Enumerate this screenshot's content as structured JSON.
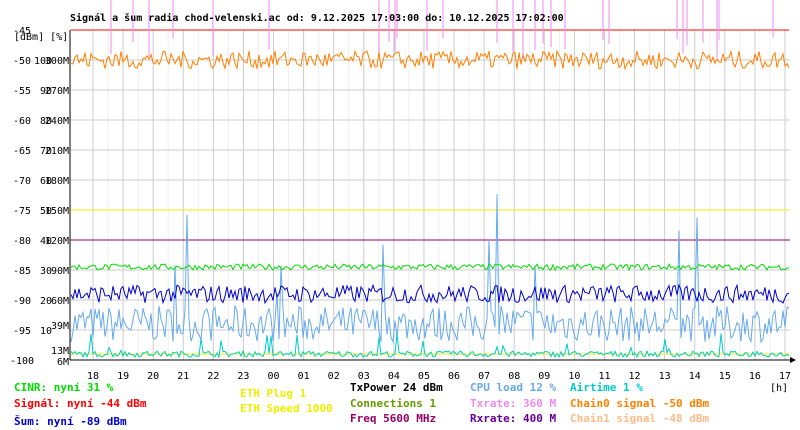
{
  "chart_data": {
    "type": "line",
    "title": "Signál a šum radia chod-velenski.ac od: 9.12.2025 17:03:00 do: 10.12.2025 17:02:00",
    "ylabel_units": "[dBm] [%]",
    "xunit": "[h]",
    "x_ticks": [
      "18",
      "19",
      "20",
      "21",
      "22",
      "23",
      "00",
      "01",
      "02",
      "03",
      "04",
      "05",
      "06",
      "07",
      "08",
      "09",
      "10",
      "11",
      "12",
      "13",
      "14",
      "15",
      "16",
      "17"
    ],
    "y_dbm_ticks": [
      -45,
      -50,
      -55,
      -60,
      -65,
      -70,
      -75,
      -80,
      -85,
      -90,
      -95,
      -100
    ],
    "y_pct_ticks": [
      100,
      90,
      80,
      70,
      60,
      50,
      40,
      30,
      20,
      10
    ],
    "y_rate_ticks": [
      "300M",
      "270M",
      "240M",
      "210M",
      "180M",
      "150M",
      "120M",
      "90M",
      "60M"
    ],
    "y_rate_labels_low": [
      "39M",
      "13M",
      "6M"
    ],
    "ylim_dbm": [
      -100,
      -45
    ],
    "reference_lines": [
      {
        "name": "Rxrate",
        "unit": "M",
        "value": 120,
        "color": "#990066"
      },
      {
        "name": "ETH Speed",
        "unit": "M",
        "value": 150,
        "color": "#eeee00"
      },
      {
        "name": "ETH Speed low",
        "unit": "%",
        "value": 2,
        "color": "#eeee00"
      }
    ],
    "series": [
      {
        "name": "CINR",
        "unit": "%",
        "color": "#00dd00",
        "approx_level": 31
      },
      {
        "name": "Signál",
        "unit": "dBm",
        "color": "#ff0000",
        "approx_level": -44
      },
      {
        "name": "Šum",
        "unit": "dBm",
        "color": "#0000cc",
        "approx_level": -89
      },
      {
        "name": "Chain0 signal",
        "unit": "dBm",
        "color": "#ff8000",
        "approx_level": -50
      },
      {
        "name": "CPU load",
        "unit": "%",
        "color": "#66aaee",
        "approx_level": 12
      },
      {
        "name": "Airtime",
        "unit": "%",
        "color": "#00cccc",
        "approx_level": 1
      },
      {
        "name": "Txrate",
        "unit": "M",
        "color": "#ee88ee",
        "approx_level": 360
      }
    ],
    "grid": true
  },
  "legend": {
    "cinr": "CINR: nyní 31 %",
    "signal": "Signál: nyní -44 dBm",
    "sum": "Šum: nyní -89 dBm",
    "eth_plug": "ETH Plug 1",
    "eth_speed": "ETH Speed 1000",
    "txpower": "TxPower 24 dBm",
    "connections": "Connections 1",
    "freq": "Freq 5600 MHz",
    "cpu": "CPU load 12 %",
    "txrate": "Txrate: 360 M",
    "rxrate": "Rxrate: 400 M",
    "airtime": "Airtime 1 %",
    "chain0": "Chain0 signal -50 dBm",
    "chain1": "Chain1 signal -48 dBm"
  },
  "colors": {
    "cinr": "#00dd00",
    "signal": "#ff0000",
    "sum": "#0000cc",
    "eth": "#eeee00",
    "txpower": "#000000",
    "connections": "#669900",
    "freq": "#990066",
    "cpu": "#66aaee",
    "txrate": "#ee88ee",
    "rxrate": "#660099",
    "airtime": "#00cccc",
    "chain0": "#ff8000",
    "chain1": "#ffbb88"
  }
}
